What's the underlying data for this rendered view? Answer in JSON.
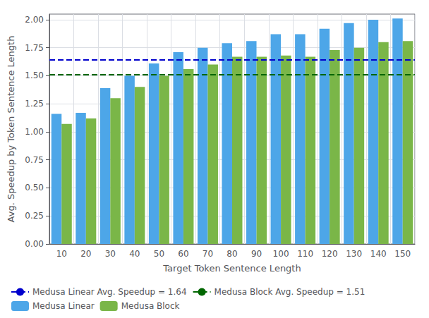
{
  "chart_data": {
    "type": "bar",
    "xlabel": "Target Token Sentence Length",
    "ylabel": "Avg. Speedup by Token Sentence Length",
    "categories": [
      10,
      20,
      30,
      40,
      50,
      60,
      70,
      80,
      90,
      100,
      110,
      120,
      130,
      140,
      150
    ],
    "series": [
      {
        "name": "Medusa Linear",
        "type": "bar",
        "color": "#4da6e8",
        "values": [
          1.16,
          1.17,
          1.39,
          1.5,
          1.61,
          1.71,
          1.75,
          1.79,
          1.81,
          1.87,
          1.87,
          1.92,
          1.97,
          2.0,
          2.01
        ]
      },
      {
        "name": "Medusa Block",
        "type": "bar",
        "color": "#7ab648",
        "values": [
          1.07,
          1.12,
          1.3,
          1.4,
          1.5,
          1.56,
          1.6,
          1.67,
          1.67,
          1.68,
          1.67,
          1.73,
          1.75,
          1.8,
          1.81
        ]
      },
      {
        "name": "Medusa Linear Avg. Speedup = 1.64",
        "type": "hline",
        "color": "#0000cc",
        "line_style": "dashed",
        "value": 1.64
      },
      {
        "name": "Medusa Block Avg. Speedup = 1.51",
        "type": "hline",
        "color": "#006600",
        "line_style": "dashed",
        "value": 1.51
      }
    ],
    "ylim": [
      0.0,
      2.05
    ],
    "yticks": [
      {
        "value": 0.0,
        "label": "0.00"
      },
      0.25,
      {
        "value": 0.5,
        "label": "0.50"
      },
      0.75,
      {
        "value": 1.0,
        "label": "1.00"
      },
      1.25,
      {
        "value": 1.5,
        "label": "1.50"
      },
      1.75,
      {
        "value": 2.0,
        "label": "2.00"
      }
    ],
    "grid": true,
    "legend": "lower left"
  }
}
